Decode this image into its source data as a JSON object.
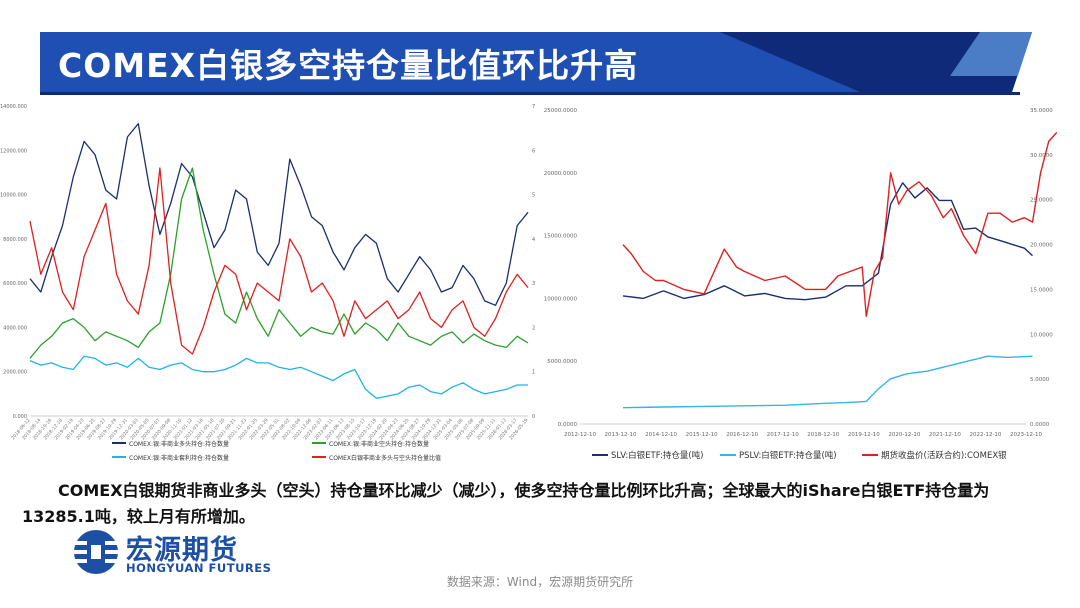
{
  "header": {
    "title": "COMEX白银多空持仓量比值环比升高",
    "colors": {
      "dark_blue": "#0e2a78",
      "mid_blue": "#1f4fb3",
      "light_blue": "#5f9ae0"
    }
  },
  "caption": {
    "text": "COMEX白银期货非商业多头（空头）持仓量环比减少（减少），使多空持仓量比例环比升高；全球最大的iShare白银ETF持仓量为13285.1吨，较上月有所增加。"
  },
  "logo": {
    "name_cn": "宏源期货",
    "name_en": "HONGYUAN FUTURES",
    "icon": "hongyuan-logo-icon",
    "color": "#1d4fa5"
  },
  "source": "数据来源：Wind，宏源期货研究所",
  "chart_data": [
    {
      "type": "line",
      "title": "",
      "y_left_ticks": [
        "0.000",
        "2000.000",
        "4000.000",
        "6000.000",
        "8000.000",
        "10000.000",
        "12000.000",
        "14000.000"
      ],
      "y_left_range": [
        0,
        14000
      ],
      "y_right_ticks": [
        "0",
        "1",
        "2",
        "3",
        "4",
        "5",
        "6",
        "7"
      ],
      "y_right_range": [
        0,
        7
      ],
      "x_ticks": [
        "2018-06-12",
        "2018-08-14",
        "2018-10-16",
        "2018-12-18",
        "2019-02-19",
        "2019-04-23",
        "2019-06-25",
        "2019-08-27",
        "2019-10-29",
        "2019-12-31",
        "2020-03-03",
        "2020-05-05",
        "2020-07-07",
        "2020-09-08",
        "2020-11-10",
        "2021-01-12",
        "2021-03-16",
        "2021-05-18",
        "2021-07-20",
        "2021-09-21",
        "2021-11-23",
        "2022-01-25",
        "2022-03-29",
        "2022-05-31",
        "2022-08-02",
        "2022-10-04",
        "2022-12-06",
        "2023-02-07",
        "2023-04-11",
        "2023-06-13",
        "2023-08-15",
        "2023-10-17",
        "2023-12-19",
        "2024-02-20",
        "2024-04-23",
        "2024-06-25",
        "2024-08-27",
        "2024-10-29",
        "2024-12-31",
        "2025-03-04",
        "2025-05-06",
        "2025-07-08",
        "2025-09-09",
        "2025-11-11",
        "2026-01-13",
        "2026-03-17",
        "2026-05-19"
      ],
      "legend_position": "bottom",
      "series": [
        {
          "name": "COMEX:银:非商业多头持仓:持仓数量",
          "color": "#1a2f6e",
          "axis": "left",
          "values": [
            6200,
            5600,
            7200,
            8600,
            10800,
            12400,
            11800,
            10200,
            9800,
            12600,
            13200,
            10400,
            8200,
            9600,
            11400,
            10800,
            9200,
            7600,
            8400,
            10200,
            9800,
            7400,
            6800,
            7800,
            11600,
            10400,
            9000,
            8600,
            7400,
            6600,
            7600,
            8200,
            7800,
            6200,
            5600,
            6400,
            7200,
            6600,
            5600,
            5800,
            6800,
            6200,
            5200,
            5000,
            6000,
            8600,
            9200
          ]
        },
        {
          "name": "COMEX:银:非商业空头持仓:持仓数量",
          "color": "#2ca02c",
          "axis": "left",
          "values": [
            2600,
            3200,
            3600,
            4200,
            4400,
            4000,
            3400,
            3800,
            3600,
            3400,
            3100,
            3800,
            4200,
            6400,
            9800,
            11200,
            8400,
            6400,
            4600,
            4200,
            5600,
            4400,
            3600,
            4800,
            4200,
            3600,
            4000,
            3800,
            3700,
            4600,
            3700,
            4200,
            3900,
            3400,
            4200,
            3600,
            3400,
            3200,
            3600,
            3800,
            3300,
            3700,
            3400,
            3200,
            3100,
            3600,
            3300
          ]
        },
        {
          "name": "COMEX:银:非商业套利持仓:持仓数量",
          "color": "#1fb3e6",
          "axis": "left",
          "values": [
            2500,
            2300,
            2400,
            2200,
            2100,
            2700,
            2600,
            2300,
            2400,
            2200,
            2600,
            2200,
            2100,
            2300,
            2400,
            2100,
            2000,
            2000,
            2100,
            2300,
            2600,
            2400,
            2400,
            2200,
            2100,
            2200,
            2000,
            1800,
            1600,
            1900,
            2100,
            1200,
            800,
            900,
            1000,
            1300,
            1400,
            1100,
            1000,
            1300,
            1500,
            1200,
            1000,
            1100,
            1200,
            1400,
            1400
          ]
        },
        {
          "name": "COMEX白银非商业多头与空头持仓量比值",
          "color": "#e02020",
          "axis": "right",
          "values": [
            4.4,
            3.2,
            3.8,
            2.8,
            2.4,
            3.6,
            4.2,
            4.8,
            3.2,
            2.6,
            2.3,
            3.4,
            5.6,
            3.0,
            1.6,
            1.4,
            2.0,
            2.8,
            3.4,
            3.2,
            2.4,
            3.0,
            2.8,
            2.6,
            4.0,
            3.6,
            2.8,
            3.0,
            2.6,
            1.8,
            2.6,
            2.2,
            2.4,
            2.6,
            2.2,
            2.4,
            2.8,
            2.2,
            2.0,
            2.4,
            2.6,
            2.0,
            1.8,
            2.2,
            2.8,
            3.2,
            2.9
          ]
        }
      ]
    },
    {
      "type": "line",
      "title": "",
      "y_left_ticks": [
        "0.0000",
        "5000.0000",
        "10000.0000",
        "15000.0000",
        "20000.0000",
        "25000.0000"
      ],
      "y_left_range": [
        0,
        25000
      ],
      "y_right_ticks": [
        "0.0000",
        "5.0000",
        "10.0000",
        "15.0000",
        "20.0000",
        "25.0000",
        "30.0000",
        "35.0000"
      ],
      "y_right_range": [
        0,
        35
      ],
      "x_ticks": [
        "2012-12-10",
        "2013-12-10",
        "2014-12-10",
        "2015-12-10",
        "2016-12-10",
        "2017-12-10",
        "2018-12-10",
        "2019-12-10",
        "2020-12-10",
        "2021-12-10",
        "2022-12-10",
        "2023-12-10"
      ],
      "legend_position": "bottom",
      "series": [
        {
          "name": "SLV:白银ETF:持仓量(吨)",
          "color": "#1a2f6e",
          "axis": "left",
          "x": [
            2014.0,
            2014.5,
            2015.0,
            2015.5,
            2016.0,
            2016.5,
            2017.0,
            2017.5,
            2018.0,
            2018.5,
            2019.0,
            2019.5,
            2019.9,
            2020.3,
            2020.6,
            2020.9,
            2021.2,
            2021.5,
            2021.8,
            2022.1,
            2022.4,
            2022.7,
            2023.0,
            2023.3,
            2023.6,
            2023.9,
            2024.1
          ],
          "values": [
            10200,
            10000,
            10600,
            10000,
            10300,
            11000,
            10200,
            10400,
            10000,
            9900,
            10100,
            11000,
            11000,
            12000,
            17500,
            19200,
            18000,
            18800,
            17800,
            17800,
            15500,
            15600,
            14900,
            14600,
            14300,
            14000,
            13400
          ]
        },
        {
          "name": "PSLV:白银ETF:持仓量(吨)",
          "color": "#33b5e8",
          "axis": "left",
          "x": [
            2014.0,
            2015.0,
            2016.0,
            2017.0,
            2018.0,
            2019.0,
            2019.5,
            2020.0,
            2020.3,
            2020.6,
            2021.0,
            2021.5,
            2022.0,
            2022.5,
            2023.0,
            2023.5,
            2024.1
          ],
          "values": [
            1300,
            1350,
            1400,
            1450,
            1500,
            1650,
            1700,
            1800,
            2800,
            3600,
            4000,
            4200,
            4600,
            5000,
            5400,
            5300,
            5400
          ]
        },
        {
          "name": "期货收盘价(活跃合约):COMEX银",
          "color": "#e02020",
          "axis": "right",
          "x": [
            2014.0,
            2014.2,
            2014.5,
            2014.8,
            2015.0,
            2015.5,
            2016.0,
            2016.5,
            2016.8,
            2017.0,
            2017.5,
            2018.0,
            2018.5,
            2019.0,
            2019.3,
            2019.6,
            2019.9,
            2020.0,
            2020.2,
            2020.4,
            2020.6,
            2020.8,
            2021.0,
            2021.3,
            2021.6,
            2021.9,
            2022.1,
            2022.4,
            2022.7,
            2023.0,
            2023.3,
            2023.6,
            2023.9,
            2024.1,
            2024.3,
            2024.5,
            2024.7
          ],
          "values": [
            20,
            19,
            17,
            16,
            16,
            15,
            14.5,
            19.5,
            17.5,
            17,
            16,
            16.5,
            15,
            15,
            16.5,
            17,
            17.5,
            12,
            17,
            18.5,
            28,
            24.5,
            26,
            27,
            25.5,
            23,
            24,
            21,
            19,
            23.5,
            23.5,
            22.5,
            23,
            22.5,
            28,
            31.5,
            32.5
          ]
        }
      ]
    }
  ]
}
